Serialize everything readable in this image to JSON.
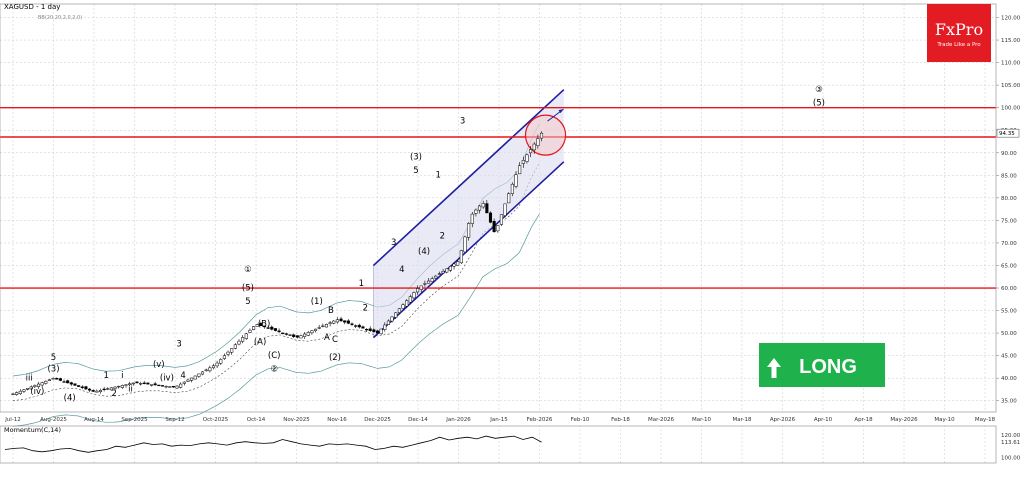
{
  "chart_data": [
    {
      "type": "candlestick",
      "symbol_label": "XAGUSD - 1 day",
      "indicator_label": "BB(20,20,2,0,2,0)",
      "y_ticks": [
        "120.00",
        "115.00",
        "110.00",
        "105.00",
        "100.00",
        "95.00",
        "90.00",
        "85.00",
        "80.00",
        "75.00",
        "70.00",
        "65.00",
        "60.00",
        "55.00",
        "50.00",
        "45.00",
        "40.00",
        "35.00"
      ],
      "ylim": [
        32.5,
        123
      ],
      "x_ticks": [
        "Jul-12",
        "Aug-2025",
        "Aug-14",
        "Sep-2025",
        "Sep-12",
        "Oct-2025",
        "Oct-14",
        "Nov-2025",
        "Nov-16",
        "Dec-2025",
        "Dec-14",
        "Jan-2026",
        "Jan-15",
        "Feb-2026",
        "Feb-10",
        "Feb-18",
        "Mar-2026",
        "Mar-10",
        "Mar-18",
        "Apr-2026",
        "Apr-10",
        "Apr-18",
        "May-2026",
        "May-10",
        "May-18"
      ],
      "current_price_label": "94.35",
      "horizontal_levels": [
        100,
        93.5,
        60
      ],
      "channel": {
        "upper": [
          [
            0,
            65
          ],
          [
            14,
            104
          ]
        ],
        "lower": [
          [
            0,
            49
          ],
          [
            14,
            88
          ]
        ]
      },
      "close_path": [
        [
          0,
          36.5
        ],
        [
          1,
          40
        ],
        [
          2,
          37
        ],
        [
          3,
          39
        ],
        [
          4,
          38
        ],
        [
          5,
          43
        ],
        [
          6,
          52
        ],
        [
          7,
          49
        ],
        [
          8,
          53
        ],
        [
          9,
          50
        ],
        [
          10,
          60
        ],
        [
          11,
          66
        ],
        [
          11.3,
          76
        ],
        [
          11.6,
          79
        ],
        [
          11.9,
          72
        ],
        [
          12.2,
          80
        ],
        [
          12.5,
          87
        ],
        [
          12.8,
          91
        ],
        [
          13.05,
          94.35
        ]
      ],
      "wave_labels": [
        {
          "text": "iii",
          "x": 0.4,
          "y": 39.5
        },
        {
          "text": "(iv)",
          "x": 0.6,
          "y": 36.5
        },
        {
          "text": "(3)",
          "x": 1.0,
          "y": 41.5
        },
        {
          "text": "5",
          "x": 1.0,
          "y": 44
        },
        {
          "text": "(4)",
          "x": 1.4,
          "y": 35
        },
        {
          "text": "1",
          "x": 2.3,
          "y": 40
        },
        {
          "text": "2",
          "x": 2.5,
          "y": 36
        },
        {
          "text": "i",
          "x": 2.7,
          "y": 40
        },
        {
          "text": "ii",
          "x": 2.9,
          "y": 37
        },
        {
          "text": "(v)",
          "x": 3.6,
          "y": 42.5
        },
        {
          "text": "(iv)",
          "x": 3.8,
          "y": 39.5
        },
        {
          "text": "3",
          "x": 4.1,
          "y": 47
        },
        {
          "text": "4",
          "x": 4.2,
          "y": 40
        },
        {
          "text": "①",
          "x": 5.8,
          "y": 63.5
        },
        {
          "text": "(5)",
          "x": 5.8,
          "y": 59.5
        },
        {
          "text": "5",
          "x": 5.8,
          "y": 56.5
        },
        {
          "text": "(B)",
          "x": 6.2,
          "y": 51.5
        },
        {
          "text": "(A)",
          "x": 6.1,
          "y": 47.5
        },
        {
          "text": "(C)",
          "x": 6.45,
          "y": 44.5
        },
        {
          "text": "②",
          "x": 6.45,
          "y": 41.5
        },
        {
          "text": "(1)",
          "x": 7.5,
          "y": 56.5
        },
        {
          "text": "B",
          "x": 7.85,
          "y": 54.5
        },
        {
          "text": "A",
          "x": 7.75,
          "y": 48.5
        },
        {
          "text": "C",
          "x": 7.95,
          "y": 48
        },
        {
          "text": "(2)",
          "x": 7.95,
          "y": 44
        },
        {
          "text": "1",
          "x": 8.6,
          "y": 60.5
        },
        {
          "text": "2",
          "x": 8.7,
          "y": 55
        },
        {
          "text": "3",
          "x": 9.4,
          "y": 69.5
        },
        {
          "text": "4",
          "x": 9.6,
          "y": 63.5
        },
        {
          "text": "(3)",
          "x": 9.95,
          "y": 88.5
        },
        {
          "text": "5",
          "x": 9.95,
          "y": 85.5
        },
        {
          "text": "1",
          "x": 10.5,
          "y": 84.5
        },
        {
          "text": "(4)",
          "x": 10.15,
          "y": 67.5
        },
        {
          "text": "2",
          "x": 10.6,
          "y": 71
        },
        {
          "text": "3",
          "x": 11.1,
          "y": 96.5
        },
        {
          "text": "③",
          "x": 19.9,
          "y": 103.5
        },
        {
          "text": "(5)",
          "x": 19.9,
          "y": 100.5
        }
      ],
      "signal_label": "LONG",
      "brand_name": "FxPro",
      "brand_tagline": "Trade Like a Pro",
      "colors": {
        "level": "#e8141c",
        "channel": "#1e1ea0",
        "signal": "#1fb14b",
        "brand": "#e31b23",
        "circle": "#e8141c"
      }
    },
    {
      "type": "line",
      "indicator_label": "Momentum(C,14)",
      "y_ticks": [
        "120.00",
        "113.61",
        "100.00"
      ],
      "ylim": [
        95,
        128
      ],
      "values": [
        107,
        108,
        108.5,
        106,
        105,
        106,
        107.5,
        108,
        106,
        104.5,
        106,
        107,
        110,
        109,
        111,
        113,
        111.5,
        112,
        110,
        111,
        110.5,
        112,
        113,
        112,
        111,
        113,
        114,
        113,
        112.5,
        113,
        116,
        114,
        112,
        111,
        110,
        112,
        111.5,
        112,
        111,
        110,
        107,
        108,
        110,
        109,
        111,
        113,
        115,
        118,
        115.5,
        117,
        118,
        116.5,
        119,
        117,
        118,
        119,
        116,
        118,
        113.61
      ]
    }
  ]
}
